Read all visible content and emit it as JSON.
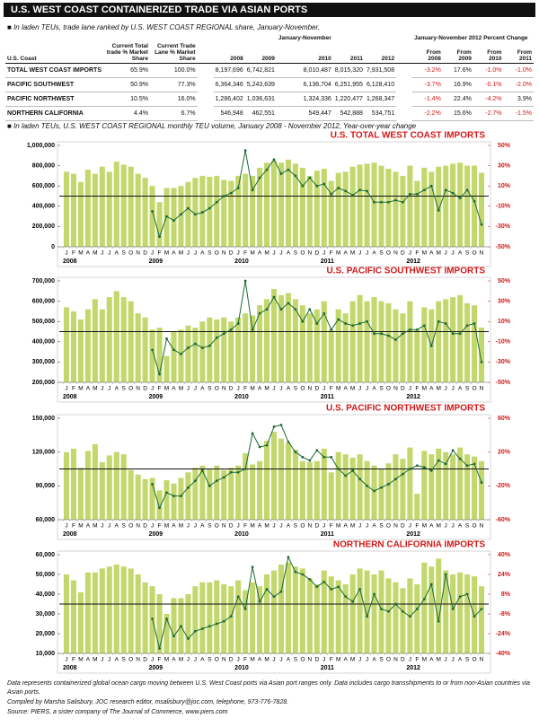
{
  "header": {
    "title": "U.S. WEST COAST CONTAINERIZED TRADE VIA ASIAN PORTS",
    "subtitle": "In laden TEUs, trade lane ranked by U.S. WEST COAST REGIONAL share, January-November."
  },
  "table": {
    "group_labels": [
      "January-November",
      "January-November 2012 Percent Change"
    ],
    "columns": [
      "U.S. Coast",
      "Current Total trade % Market Share",
      "Current Trade Lane % Market Share",
      "2008",
      "2009",
      "2010",
      "2011",
      "2012",
      "From 2008",
      "From 2009",
      "From 2010",
      "From 2011"
    ],
    "rows": [
      [
        "TOTAL WEST COAST IMPORTS",
        "65.9%",
        "100.0%",
        "8,197,696",
        "6,742,821",
        "8,010,487",
        "8,015,320",
        "7,931,508",
        "-3.2%",
        "17.6%",
        "-1.0%",
        "-1.0%"
      ],
      [
        "PACIFIC SOUTHWEST",
        "50.9%",
        "77.3%",
        "6,364,346",
        "5,243,639",
        "6,136,704",
        "6,251,955",
        "6,128,410",
        "-3.7%",
        "16.9%",
        "-0.1%",
        "-2.0%"
      ],
      [
        "PACIFIC NORTHWEST",
        "10.5%",
        "16.0%",
        "1,286,402",
        "1,036,631",
        "1,324,336",
        "1,220,477",
        "1,268,347",
        "-1.4%",
        "22.4%",
        "-4.2%",
        "3.9%"
      ],
      [
        "NORTHERN CALIFORNIA",
        "4.4%",
        "6.7%",
        "546,948",
        "462,551",
        "549,447",
        "542,888",
        "534,751",
        "-2.2%",
        "15.6%",
        "-2.7%",
        "-1.5%"
      ]
    ]
  },
  "charts_subtitle": "In laden TEUs, U.S. WEST COAST REGIONAL monthly TEU volume, January 2008 - November 2012,  Year-over-year change",
  "chart_data": [
    {
      "type": "bar_line",
      "title": "U.S. TOTAL WEST COAST IMPORTS",
      "categories": [
        "J",
        "F",
        "M",
        "A",
        "M",
        "J",
        "J",
        "A",
        "S",
        "O",
        "N",
        "D",
        "J",
        "F",
        "M",
        "A",
        "M",
        "J",
        "J",
        "A",
        "S",
        "O",
        "N",
        "D",
        "J",
        "F",
        "M",
        "A",
        "M",
        "J",
        "J",
        "A",
        "S",
        "O",
        "N",
        "D",
        "J",
        "F",
        "M",
        "A",
        "M",
        "J",
        "J",
        "A",
        "S",
        "O",
        "N",
        "D",
        "J",
        "F",
        "M",
        "A",
        "M",
        "J",
        "J",
        "A",
        "S",
        "O",
        "N"
      ],
      "year_labels": [
        "2008",
        "2009",
        "2010",
        "2011",
        "2012"
      ],
      "series": [
        {
          "color": "#c3d86c",
          "values": [
            740000,
            720000,
            640000,
            760000,
            720000,
            790000,
            740000,
            840000,
            810000,
            790000,
            720000,
            680000,
            600000,
            440000,
            580000,
            580000,
            600000,
            640000,
            680000,
            700000,
            690000,
            700000,
            660000,
            650000,
            700000,
            720000,
            700000,
            780000,
            830000,
            850000,
            830000,
            860000,
            820000,
            780000,
            700000,
            750000,
            770000,
            650000,
            730000,
            740000,
            790000,
            810000,
            820000,
            830000,
            800000,
            770000,
            740000,
            700000,
            800000,
            650000,
            780000,
            740000,
            790000,
            800000,
            820000,
            830000,
            800000,
            800000,
            730000
          ]
        },
        {
          "color": "#1e6b32",
          "axis": "y2",
          "values": [
            null,
            null,
            null,
            null,
            null,
            null,
            null,
            null,
            null,
            null,
            null,
            null,
            -15,
            -40,
            -20,
            -24,
            -18,
            -12,
            -18,
            -16,
            -12,
            -6,
            0,
            3,
            8,
            45,
            6,
            18,
            26,
            36,
            22,
            26,
            20,
            10,
            18,
            10,
            12,
            2,
            8,
            5,
            1,
            6,
            5,
            -6,
            -6,
            -6,
            -4,
            -6,
            2,
            2,
            6,
            10,
            -14,
            6,
            3,
            -2,
            6,
            -5,
            -28
          ]
        }
      ],
      "ylim": [
        0,
        1000000
      ],
      "yticks": [
        0,
        {
          "value": 200000,
          "label": "200,000"
        },
        {
          "value": 400000,
          "label": "400,000"
        },
        {
          "value": 600000,
          "label": "600,000"
        },
        {
          "value": 800000,
          "label": "800,000"
        },
        {
          "value": 1000000,
          "label": "1,000,000"
        }
      ],
      "y2lim": [
        -50,
        50
      ],
      "y2ticks": [
        {
          "value": -50,
          "label": "-50%"
        },
        {
          "value": -30,
          "label": "-30%"
        },
        {
          "value": -10,
          "label": "-10%"
        },
        {
          "value": 10,
          "label": "10%"
        },
        {
          "value": 30,
          "label": "30%"
        },
        {
          "value": 50,
          "label": "50%"
        }
      ]
    },
    {
      "type": "bar_line",
      "title": "U.S. PACIFIC SOUTHWEST IMPORTS",
      "categories": [
        "J",
        "F",
        "M",
        "A",
        "M",
        "J",
        "J",
        "A",
        "S",
        "O",
        "N",
        "D",
        "J",
        "F",
        "M",
        "A",
        "M",
        "J",
        "J",
        "A",
        "S",
        "O",
        "N",
        "D",
        "J",
        "F",
        "M",
        "A",
        "M",
        "J",
        "J",
        "A",
        "S",
        "O",
        "N",
        "D",
        "J",
        "F",
        "M",
        "A",
        "M",
        "J",
        "J",
        "A",
        "S",
        "O",
        "N",
        "D",
        "J",
        "F",
        "M",
        "A",
        "M",
        "J",
        "J",
        "A",
        "S",
        "O",
        "N"
      ],
      "year_labels": [
        "2008",
        "2009",
        "2010",
        "2011",
        "2012"
      ],
      "series": [
        {
          "color": "#c3d86c",
          "values": [
            570000,
            550000,
            510000,
            560000,
            610000,
            560000,
            620000,
            650000,
            620000,
            600000,
            540000,
            520000,
            460000,
            470000,
            330000,
            450000,
            460000,
            480000,
            470000,
            500000,
            520000,
            510000,
            520000,
            500000,
            520000,
            540000,
            530000,
            580000,
            610000,
            660000,
            630000,
            640000,
            610000,
            580000,
            540000,
            560000,
            600000,
            460000,
            560000,
            540000,
            600000,
            630000,
            600000,
            620000,
            600000,
            590000,
            560000,
            540000,
            600000,
            460000,
            570000,
            560000,
            600000,
            610000,
            620000,
            630000,
            590000,
            580000,
            470000
          ]
        },
        {
          "color": "#1e6b32",
          "axis": "y2",
          "values": [
            null,
            null,
            null,
            null,
            null,
            null,
            null,
            null,
            null,
            null,
            null,
            null,
            -18,
            -42,
            -7,
            -18,
            -22,
            -16,
            -12,
            -16,
            -14,
            -6,
            -2,
            2,
            8,
            50,
            2,
            18,
            22,
            34,
            22,
            28,
            22,
            10,
            22,
            8,
            18,
            2,
            12,
            8,
            6,
            8,
            10,
            -2,
            -2,
            -4,
            -8,
            -2,
            2,
            2,
            6,
            -14,
            10,
            8,
            -2,
            -2,
            6,
            8,
            -30
          ]
        }
      ],
      "ylim": [
        200000,
        700000
      ],
      "yticks": [
        {
          "value": 200000,
          "label": "200,000"
        },
        {
          "value": 300000,
          "label": "300,000"
        },
        {
          "value": 400000,
          "label": "400,000"
        },
        {
          "value": 500000,
          "label": "500,000"
        },
        {
          "value": 600000,
          "label": "600,000"
        },
        {
          "value": 700000,
          "label": "700,000"
        }
      ],
      "y2lim": [
        -50,
        50
      ],
      "y2ticks": [
        {
          "value": -50,
          "label": "-50%"
        },
        {
          "value": -30,
          "label": "-30%"
        },
        {
          "value": -10,
          "label": "-10%"
        },
        {
          "value": 10,
          "label": "10%"
        },
        {
          "value": 30,
          "label": "30%"
        },
        {
          "value": 50,
          "label": "50%"
        }
      ]
    },
    {
      "type": "bar_line",
      "title": "U.S. PACIFIC NORTHWEST IMPORTS",
      "categories": [
        "J",
        "F",
        "M",
        "A",
        "M",
        "J",
        "J",
        "A",
        "S",
        "O",
        "N",
        "D",
        "J",
        "F",
        "M",
        "A",
        "M",
        "J",
        "J",
        "A",
        "S",
        "O",
        "N",
        "D",
        "J",
        "F",
        "M",
        "A",
        "M",
        "J",
        "J",
        "A",
        "S",
        "O",
        "N",
        "D",
        "J",
        "F",
        "M",
        "A",
        "M",
        "J",
        "J",
        "A",
        "S",
        "O",
        "N",
        "D",
        "J",
        "F",
        "M",
        "A",
        "M",
        "J",
        "J",
        "A",
        "S",
        "O",
        "N"
      ],
      "year_labels": [
        "2008",
        "2009",
        "2010",
        "2011",
        "2012"
      ],
      "series": [
        {
          "color": "#c3d86c",
          "values": [
            120000,
            123000,
            106000,
            121000,
            127000,
            111000,
            117000,
            120000,
            118000,
            104000,
            100000,
            96000,
            97000,
            86000,
            95000,
            92000,
            97000,
            102000,
            106000,
            108000,
            105000,
            108000,
            104000,
            106000,
            108000,
            119000,
            109000,
            112000,
            130000,
            138000,
            132000,
            128000,
            122000,
            112000,
            111000,
            112000,
            123000,
            102000,
            120000,
            118000,
            115000,
            118000,
            112000,
            108000,
            105000,
            110000,
            118000,
            114000,
            124000,
            83000,
            121000,
            118000,
            123000,
            120000,
            118000,
            124000,
            118000,
            116000,
            112000
          ]
        },
        {
          "color": "#1e6b32",
          "axis": "y2",
          "values": [
            null,
            null,
            null,
            null,
            null,
            null,
            null,
            null,
            null,
            null,
            null,
            null,
            -18,
            -46,
            -28,
            -32,
            -32,
            -22,
            -14,
            -2,
            -20,
            -14,
            -10,
            -4,
            -4,
            0,
            42,
            26,
            28,
            50,
            52,
            32,
            20,
            14,
            10,
            22,
            14,
            14,
            0,
            -8,
            -2,
            -12,
            -20,
            -26,
            -22,
            -18,
            -12,
            -6,
            0,
            4,
            2,
            -2,
            10,
            6,
            22,
            12,
            4,
            6,
            -16
          ]
        }
      ],
      "ylim": [
        60000,
        150000
      ],
      "yticks": [
        {
          "value": 60000,
          "label": "60,000"
        },
        {
          "value": 90000,
          "label": "90,000"
        },
        {
          "value": 120000,
          "label": "120,000"
        },
        {
          "value": 150000,
          "label": "150,000"
        }
      ],
      "y2lim": [
        -60,
        60
      ],
      "y2ticks": [
        {
          "value": -60,
          "label": "-60%"
        },
        {
          "value": -20,
          "label": "-20%"
        },
        {
          "value": 20,
          "label": "20%"
        },
        {
          "value": 60,
          "label": "60%"
        }
      ]
    },
    {
      "type": "bar_line",
      "title": "NORTHERN CALIFORNIA IMPORTS",
      "categories": [
        "J",
        "F",
        "M",
        "A",
        "M",
        "J",
        "J",
        "A",
        "S",
        "O",
        "N",
        "D",
        "J",
        "F",
        "M",
        "A",
        "M",
        "J",
        "J",
        "A",
        "S",
        "O",
        "N",
        "D",
        "J",
        "F",
        "M",
        "A",
        "M",
        "J",
        "J",
        "A",
        "S",
        "O",
        "N",
        "D",
        "J",
        "F",
        "M",
        "A",
        "M",
        "J",
        "J",
        "A",
        "S",
        "O",
        "N",
        "D",
        "J",
        "F",
        "M",
        "A",
        "M",
        "J",
        "J",
        "A",
        "S",
        "O",
        "N"
      ],
      "year_labels": [
        "2008",
        "2009",
        "2010",
        "2011",
        "2012"
      ],
      "series": [
        {
          "color": "#c3d86c",
          "values": [
            50000,
            47000,
            41000,
            51000,
            51000,
            53000,
            54000,
            55000,
            54000,
            53000,
            50000,
            46000,
            44000,
            40000,
            30000,
            38000,
            38000,
            40000,
            44000,
            46000,
            46000,
            47000,
            45000,
            44000,
            47000,
            42000,
            46000,
            44000,
            50000,
            52000,
            55000,
            56000,
            54000,
            53000,
            48000,
            45000,
            52000,
            49000,
            47000,
            45000,
            50000,
            53000,
            52000,
            50000,
            52000,
            48000,
            46000,
            43000,
            48000,
            45000,
            56000,
            54000,
            58000,
            52000,
            50000,
            51000,
            50000,
            49000,
            44000
          ]
        },
        {
          "color": "#1e6b32",
          "axis": "y2",
          "values": [
            null,
            null,
            null,
            null,
            null,
            null,
            null,
            null,
            null,
            null,
            null,
            null,
            -12,
            -36,
            -12,
            -26,
            -18,
            -28,
            -22,
            -20,
            -18,
            -16,
            -14,
            -10,
            6,
            -4,
            30,
            2,
            12,
            6,
            10,
            38,
            26,
            24,
            20,
            14,
            18,
            12,
            14,
            6,
            2,
            12,
            -10,
            8,
            -4,
            -6,
            0,
            -6,
            -10,
            -4,
            4,
            16,
            -14,
            24,
            -4,
            6,
            8,
            -10,
            -4
          ]
        }
      ],
      "ylim": [
        10000,
        60000
      ],
      "yticks": [
        {
          "value": 10000,
          "label": "10,000"
        },
        {
          "value": 20000,
          "label": "20,000"
        },
        {
          "value": 30000,
          "label": "30,000"
        },
        {
          "value": 40000,
          "label": "40,000"
        },
        {
          "value": 50000,
          "label": "50,000"
        },
        {
          "value": 60000,
          "label": "60,000"
        }
      ],
      "y2lim": [
        -40,
        40
      ],
      "y2ticks": [
        {
          "value": -40,
          "label": "-40%"
        },
        {
          "value": -24,
          "label": "-24%"
        },
        {
          "value": -8,
          "label": "-8%"
        },
        {
          "value": 8,
          "label": "8%"
        },
        {
          "value": 24,
          "label": "24%"
        },
        {
          "value": 40,
          "label": "40%"
        }
      ]
    }
  ],
  "footer": {
    "note": "Data represents containerized global ocean cargo moving between U.S. West Coast ports via Asian port ranges only. Data includes cargo transshipments to or from non-Asian countries via Asian ports.",
    "compiled": "Compiled by Marsha Salisbury, JOC research editor, msalisbury@joc.com, telephone, 973-776-7828.",
    "source": "Source: PIERS, a sister company of The Journal of Commerce, www.piers.com"
  }
}
